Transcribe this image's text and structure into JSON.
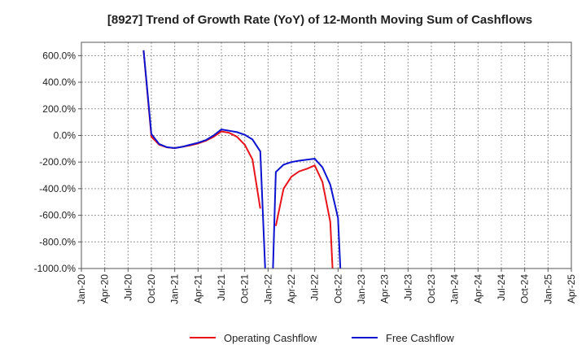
{
  "chart_data": {
    "type": "line",
    "title": "[8927]  Trend of Growth Rate (YoY) of 12-Month Moving Sum of Cashflows",
    "xlabel": "",
    "ylabel": "",
    "ylim": [
      -1000,
      700
    ],
    "y_ticks": [
      600,
      400,
      200,
      0,
      -200,
      -400,
      -600,
      -800,
      -1000
    ],
    "y_tick_labels": [
      "600.0%",
      "400.0%",
      "200.0%",
      "0.0%",
      "-200.0%",
      "-400.0%",
      "-600.0%",
      "-800.0%",
      "-1000.0%"
    ],
    "x_tick_labels": [
      "Jan-20",
      "Apr-20",
      "Jul-20",
      "Oct-20",
      "Jan-21",
      "Apr-21",
      "Jul-21",
      "Oct-21",
      "Jan-22",
      "Apr-22",
      "Jul-22",
      "Oct-22",
      "Jan-23",
      "Apr-23",
      "Jul-23",
      "Oct-23",
      "Jan-24",
      "Apr-24",
      "Jul-24",
      "Oct-24",
      "Jan-25",
      "Apr-25"
    ],
    "grid": true,
    "legend_position": "bottom",
    "series": [
      {
        "name": "Operating Cashflow",
        "color": "#e8141a",
        "points": [
          [
            "2020-09",
            640
          ],
          [
            "2020-10",
            -10
          ],
          [
            "2020-11",
            -70
          ],
          [
            "2020-12",
            -90
          ],
          [
            "2021-01",
            -95
          ],
          [
            "2021-02",
            -85
          ],
          [
            "2021-03",
            -75
          ],
          [
            "2021-04",
            -60
          ],
          [
            "2021-05",
            -40
          ],
          [
            "2021-06",
            -10
          ],
          [
            "2021-07",
            30
          ],
          [
            "2021-08",
            20
          ],
          [
            "2021-09",
            -10
          ],
          [
            "2021-10",
            -70
          ],
          [
            "2021-11",
            -180
          ],
          [
            "2021-12",
            -550
          ],
          null,
          [
            "2022-02",
            -680
          ],
          [
            "2022-03",
            -400
          ],
          [
            "2022-04",
            -310
          ],
          [
            "2022-05",
            -270
          ],
          [
            "2022-06",
            -250
          ],
          [
            "2022-07",
            -225
          ],
          [
            "2022-08",
            -350
          ],
          [
            "2022-09",
            -650
          ],
          [
            "2022-09-10",
            -1000
          ]
        ]
      },
      {
        "name": "Free Cashflow",
        "color": "#0c14d0",
        "points": [
          [
            "2020-09",
            640
          ],
          [
            "2020-10",
            10
          ],
          [
            "2020-11",
            -65
          ],
          [
            "2020-12",
            -88
          ],
          [
            "2021-01",
            -95
          ],
          [
            "2021-02",
            -85
          ],
          [
            "2021-03",
            -70
          ],
          [
            "2021-04",
            -55
          ],
          [
            "2021-05",
            -35
          ],
          [
            "2021-06",
            0
          ],
          [
            "2021-07",
            45
          ],
          [
            "2021-08",
            35
          ],
          [
            "2021-09",
            25
          ],
          [
            "2021-10",
            5
          ],
          [
            "2021-11",
            -30
          ],
          [
            "2021-12",
            -120
          ],
          [
            "2021-12-20",
            -1000
          ],
          null,
          [
            "2022-01-20",
            -1000
          ],
          [
            "2022-02",
            -275
          ],
          [
            "2022-03",
            -220
          ],
          [
            "2022-04",
            -200
          ],
          [
            "2022-05",
            -190
          ],
          [
            "2022-06",
            -182
          ],
          [
            "2022-07",
            -175
          ],
          [
            "2022-08",
            -240
          ],
          [
            "2022-09",
            -370
          ],
          [
            "2022-10",
            -620
          ],
          [
            "2022-10-10",
            -1000
          ]
        ]
      }
    ]
  }
}
